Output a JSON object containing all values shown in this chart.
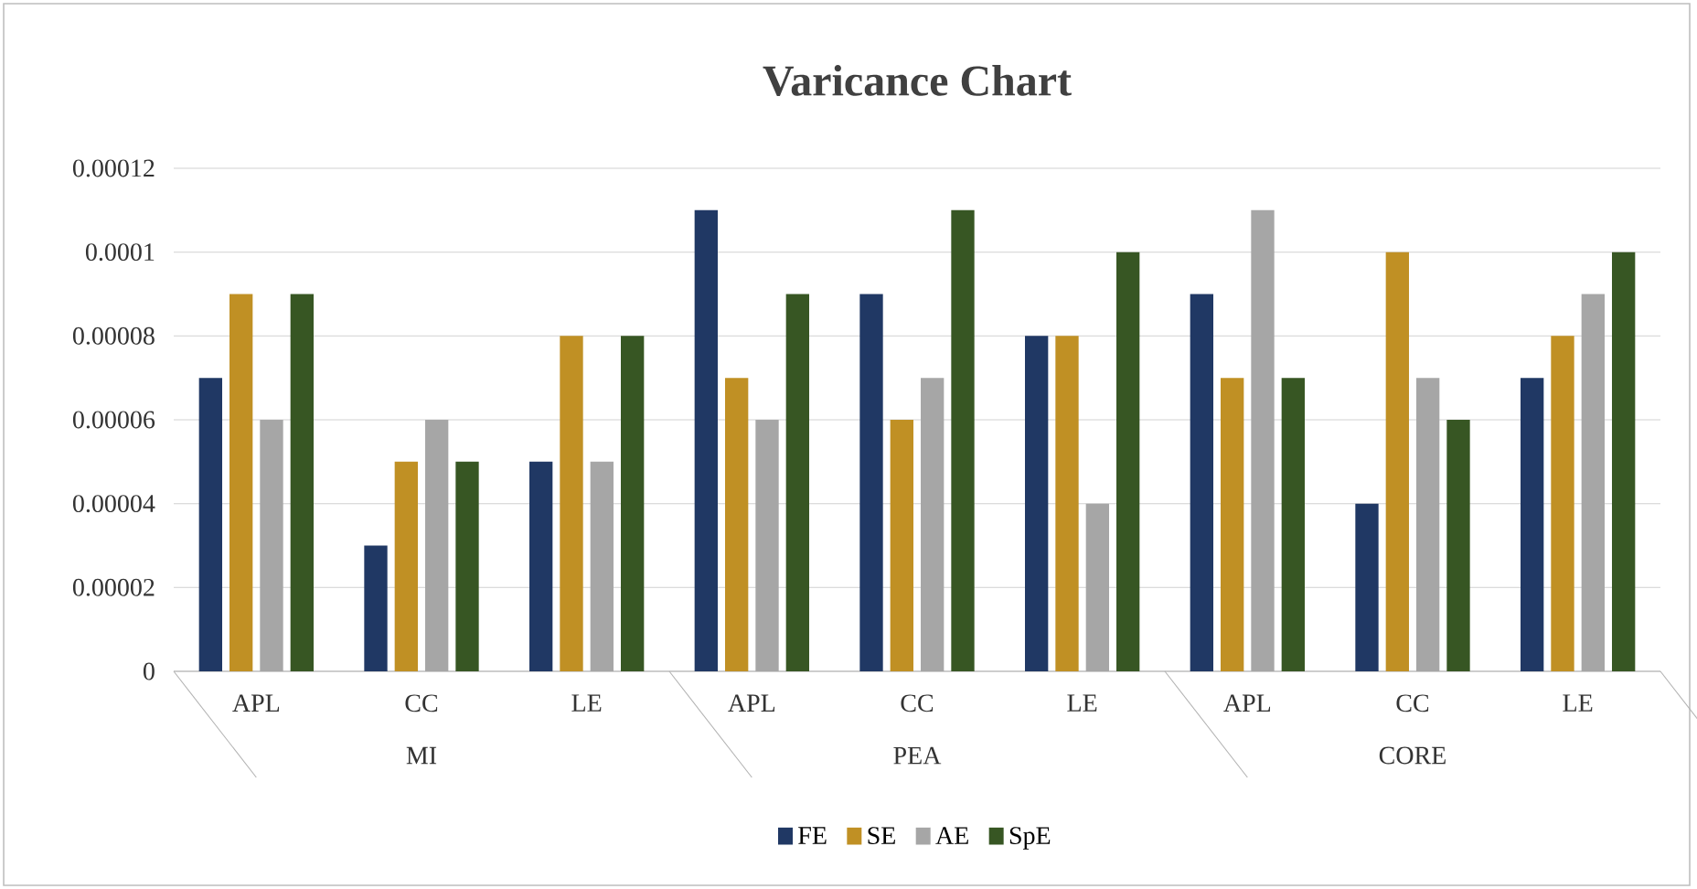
{
  "chart_data": {
    "type": "bar",
    "title": "Varicance Chart",
    "categories": [
      "APL",
      "CC",
      "LE",
      "APL",
      "CC",
      "LE",
      "APL",
      "CC",
      "LE"
    ],
    "annotations": [
      "MI",
      "PEA",
      "CORE"
    ],
    "series": [
      {
        "name": "FE",
        "color": "#203864",
        "values": [
          7e-05,
          3e-05,
          5e-05,
          0.00011,
          9e-05,
          8e-05,
          9e-05,
          4e-05,
          7e-05
        ]
      },
      {
        "name": "SE",
        "color": "#c09024",
        "values": [
          9e-05,
          5e-05,
          8e-05,
          7e-05,
          6e-05,
          8e-05,
          7e-05,
          0.0001,
          8e-05
        ]
      },
      {
        "name": "AE",
        "color": "#a6a6a6",
        "values": [
          6e-05,
          6e-05,
          5e-05,
          6e-05,
          7e-05,
          4e-05,
          0.00011,
          7e-05,
          9e-05
        ]
      },
      {
        "name": "SpE",
        "color": "#375623",
        "values": [
          9e-05,
          5e-05,
          8e-05,
          9e-05,
          0.00011,
          0.0001,
          7e-05,
          6e-05,
          0.0001
        ]
      }
    ],
    "ylim": [
      0,
      0.00012
    ],
    "yticks": [
      0,
      {
        "value": 2e-05,
        "label": "0.00002"
      },
      {
        "value": 4e-05,
        "label": "0.00004"
      },
      {
        "value": 6e-05,
        "label": "0.00006"
      },
      {
        "value": 8e-05,
        "label": "0.00008"
      },
      {
        "value": 0.0001,
        "label": "0.0001"
      },
      {
        "value": 0.00012,
        "label": "0.00012"
      }
    ],
    "grid": "y",
    "legend": "bottom"
  }
}
